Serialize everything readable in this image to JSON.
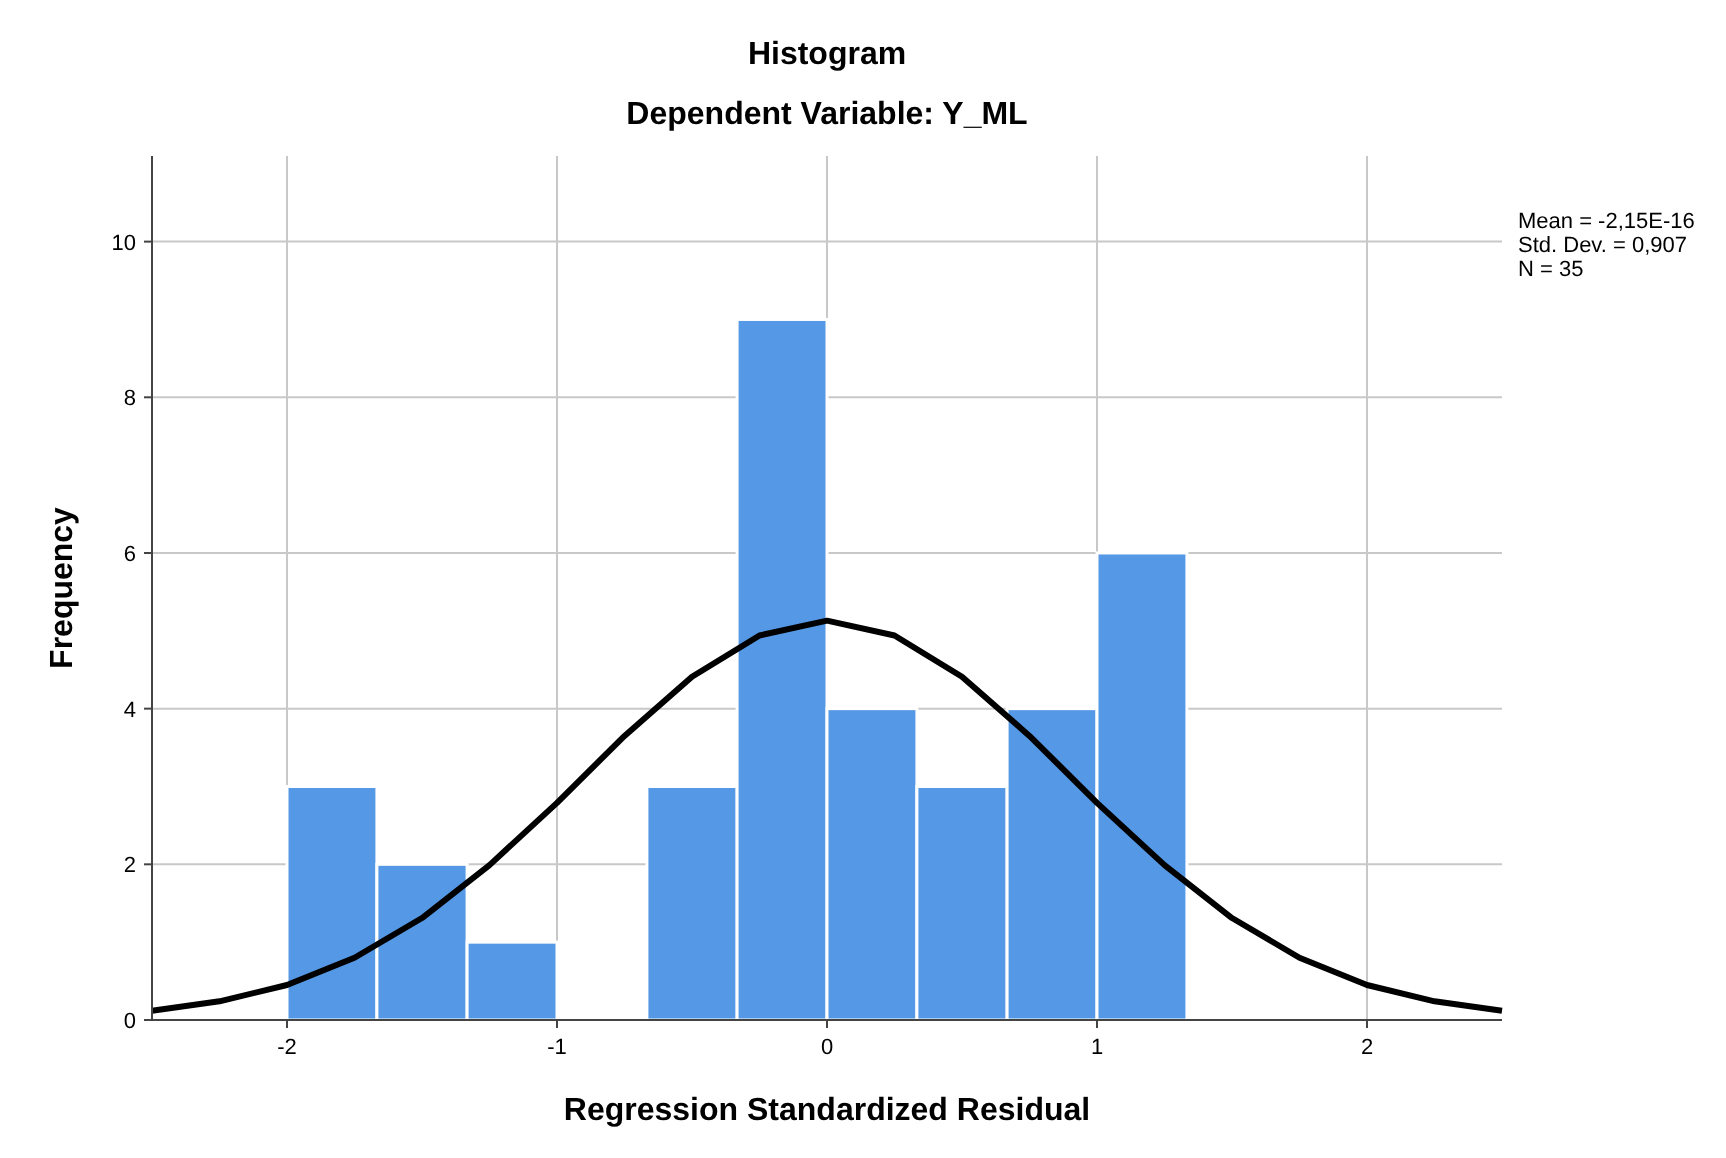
{
  "chart_data": {
    "type": "histogram",
    "title": "Histogram",
    "subtitle": "Dependent Variable: Y_ML",
    "xlabel": "Regression Standardized Residual",
    "ylabel": "Frequency",
    "bins": [
      -2,
      -1.667,
      -1.333,
      -1,
      -0.667,
      -0.333,
      0,
      0.333,
      0.667,
      1,
      1.333
    ],
    "values": [
      3,
      2,
      1,
      0,
      3,
      9,
      4,
      3,
      4,
      6
    ],
    "color": "#5599e6",
    "series": [
      {
        "type": "line",
        "color": "#000000",
        "x": [
          -2.5,
          -2.25,
          -2,
          -1.75,
          -1.5,
          -1.25,
          -1,
          -0.75,
          -0.5,
          -0.25,
          0,
          0.25,
          0.5,
          0.75,
          1,
          1.25,
          1.5,
          1.75,
          2,
          2.25,
          2.5
        ],
        "values": [
          0.12,
          0.24,
          0.45,
          0.8,
          1.31,
          1.99,
          2.79,
          3.65,
          4.41,
          4.94,
          5.13,
          4.94,
          4.41,
          3.65,
          2.79,
          1.99,
          1.31,
          0.8,
          0.45,
          0.24,
          0.12
        ]
      }
    ],
    "annotations": [
      "Mean = -2,15E-16",
      "Std. Dev. = 0,907",
      "N = 35"
    ],
    "xlim": [
      -2.5,
      2.5
    ],
    "ylim": [
      0,
      11.1
    ],
    "xticks": [
      -2,
      -1,
      0,
      1,
      2
    ],
    "yticks": [
      0,
      2,
      4,
      6,
      8,
      10
    ],
    "grid": true,
    "marker": "none",
    "line_style": "solid"
  }
}
